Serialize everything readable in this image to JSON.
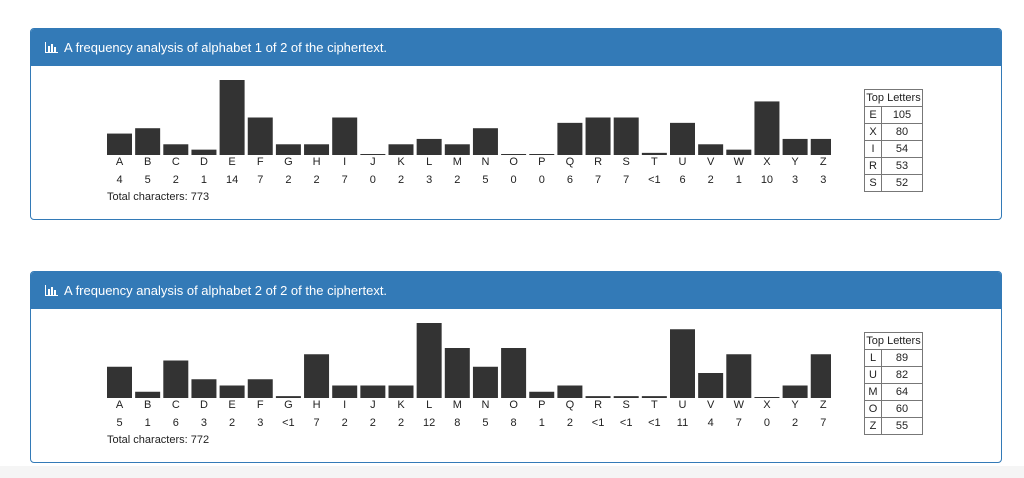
{
  "panels": [
    {
      "title": "A frequency analysis of alphabet 1 of 2 of the ciphertext.",
      "categories": [
        "A",
        "B",
        "C",
        "D",
        "E",
        "F",
        "G",
        "H",
        "I",
        "J",
        "K",
        "L",
        "M",
        "N",
        "O",
        "P",
        "Q",
        "R",
        "S",
        "T",
        "U",
        "V",
        "W",
        "X",
        "Y",
        "Z"
      ],
      "values": [
        4,
        5,
        2,
        1,
        14,
        7,
        2,
        2,
        7,
        0,
        2,
        3,
        2,
        5,
        0,
        0,
        6,
        7,
        7,
        0.4,
        6,
        2,
        1,
        10,
        3,
        3
      ],
      "value_labels": [
        "4",
        "5",
        "2",
        "1",
        "14",
        "7",
        "2",
        "2",
        "7",
        "0",
        "2",
        "3",
        "2",
        "5",
        "0",
        "0",
        "6",
        "7",
        "7",
        "<1",
        "6",
        "2",
        "1",
        "10",
        "3",
        "3"
      ],
      "total": "Total characters: 773",
      "top_header": "Top Letters",
      "top": [
        [
          "E",
          105
        ],
        [
          "X",
          80
        ],
        [
          "I",
          54
        ],
        [
          "R",
          53
        ],
        [
          "S",
          52
        ]
      ]
    },
    {
      "title": "A frequency analysis of alphabet 2 of 2 of the ciphertext.",
      "categories": [
        "A",
        "B",
        "C",
        "D",
        "E",
        "F",
        "G",
        "H",
        "I",
        "J",
        "K",
        "L",
        "M",
        "N",
        "O",
        "P",
        "Q",
        "R",
        "S",
        "T",
        "U",
        "V",
        "W",
        "X",
        "Y",
        "Z"
      ],
      "values": [
        5,
        1,
        6,
        3,
        2,
        3,
        0.3,
        7,
        2,
        2,
        2,
        12,
        8,
        5,
        8,
        1,
        2,
        0.3,
        0.3,
        0.3,
        11,
        4,
        7,
        0,
        2,
        7
      ],
      "value_labels": [
        "5",
        "1",
        "6",
        "3",
        "2",
        "3",
        "<1",
        "7",
        "2",
        "2",
        "2",
        "12",
        "8",
        "5",
        "8",
        "1",
        "2",
        "<1",
        "<1",
        "<1",
        "11",
        "4",
        "7",
        "0",
        "2",
        "7"
      ],
      "total": "Total characters: 772",
      "top_header": "Top Letters",
      "top": [
        [
          "L",
          89
        ],
        [
          "U",
          82
        ],
        [
          "M",
          64
        ],
        [
          "O",
          60
        ],
        [
          "Z",
          55
        ]
      ]
    }
  ]
}
